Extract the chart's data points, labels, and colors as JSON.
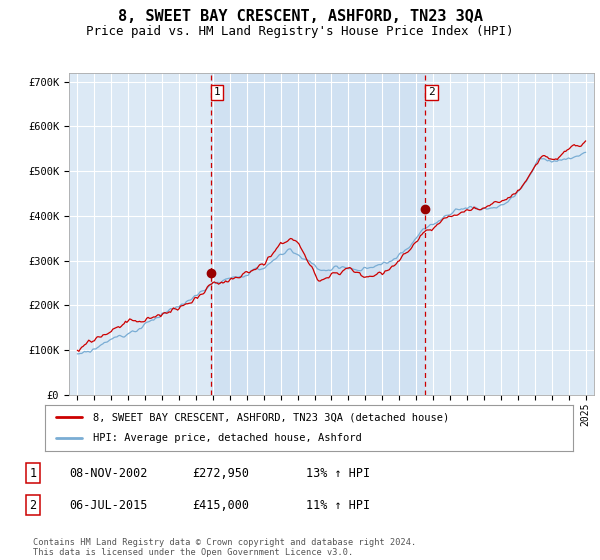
{
  "title": "8, SWEET BAY CRESCENT, ASHFORD, TN23 3QA",
  "subtitle": "Price paid vs. HM Land Registry's House Price Index (HPI)",
  "title_fontsize": 11,
  "subtitle_fontsize": 9,
  "background_color": "#ffffff",
  "plot_bg_color": "#dce9f5",
  "plot_bg_highlight": "#c8ddf0",
  "grid_color": "#ffffff",
  "red_line_color": "#cc0000",
  "blue_line_color": "#7aadd4",
  "purchase1_date": 2002.86,
  "purchase1_price": 272950,
  "purchase2_date": 2015.5,
  "purchase2_price": 415000,
  "ylim_min": 0,
  "ylim_max": 720000,
  "ytick_values": [
    0,
    100000,
    200000,
    300000,
    400000,
    500000,
    600000,
    700000
  ],
  "ytick_labels": [
    "£0",
    "£100K",
    "£200K",
    "£300K",
    "£400K",
    "£500K",
    "£600K",
    "£700K"
  ],
  "xlim_min": 1994.5,
  "xlim_max": 2025.5,
  "xtick_values": [
    1995,
    1996,
    1997,
    1998,
    1999,
    2000,
    2001,
    2002,
    2003,
    2004,
    2005,
    2006,
    2007,
    2008,
    2009,
    2010,
    2011,
    2012,
    2013,
    2014,
    2015,
    2016,
    2017,
    2018,
    2019,
    2020,
    2021,
    2022,
    2023,
    2024,
    2025
  ],
  "legend_label_red": "8, SWEET BAY CRESCENT, ASHFORD, TN23 3QA (detached house)",
  "legend_label_blue": "HPI: Average price, detached house, Ashford",
  "table_entries": [
    {
      "num": "1",
      "date": "08-NOV-2002",
      "price": "£272,950",
      "hpi": "13% ↑ HPI"
    },
    {
      "num": "2",
      "date": "06-JUL-2015",
      "price": "£415,000",
      "hpi": "11% ↑ HPI"
    }
  ],
  "footer_text": "Contains HM Land Registry data © Crown copyright and database right 2024.\nThis data is licensed under the Open Government Licence v3.0.",
  "vline_color": "#cc0000",
  "marker_color": "#990000",
  "label_box_color": "#ffffff",
  "label_box_edge": "#cc0000"
}
